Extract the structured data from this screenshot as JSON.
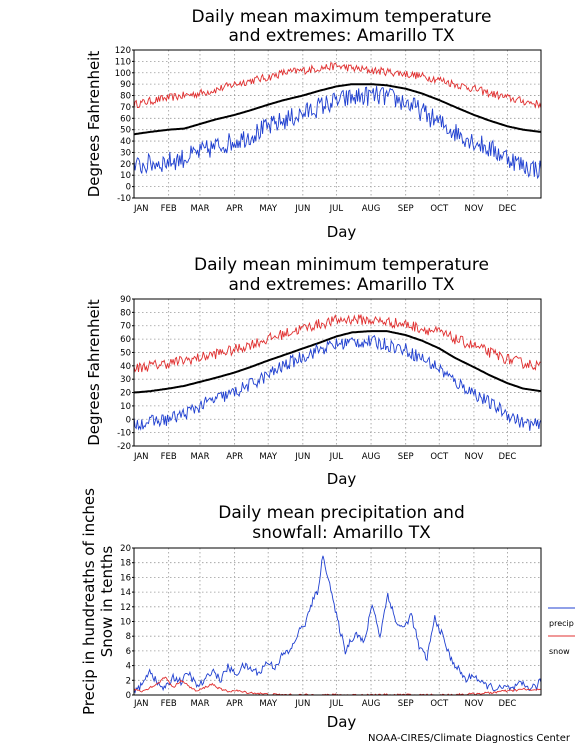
{
  "credit": "NOAA-CIRES/Climate Diagnostics Center",
  "chart_data": [
    {
      "type": "line",
      "title_lines": [
        "Daily mean maximum temperature",
        "and extremes: Amarillo TX"
      ],
      "xlabel": "Day",
      "ylabel": "Degrees Fahrenheit",
      "ylim": [
        -10,
        120
      ],
      "yticks": [
        -10,
        0,
        10,
        20,
        30,
        40,
        50,
        60,
        70,
        80,
        90,
        100,
        110,
        120
      ],
      "xticks": [
        "JAN",
        "FEB",
        "MAR",
        "APR",
        "MAY",
        "JUN",
        "JUL",
        "AUG",
        "SEP",
        "OCT",
        "NOV",
        "DEC"
      ],
      "grid": true,
      "series": [
        {
          "color": "#e03030",
          "x": [
            1,
            15,
            32,
            46,
            60,
            74,
            91,
            105,
            121,
            135,
            152,
            166,
            182,
            196,
            213,
            227,
            244,
            258,
            274,
            288,
            305,
            319,
            335,
            349,
            365
          ],
          "values": [
            72,
            75,
            78,
            80,
            82,
            85,
            90,
            93,
            96,
            100,
            102,
            104,
            106,
            104,
            102,
            101,
            99,
            97,
            94,
            90,
            86,
            82,
            78,
            75,
            72
          ],
          "noise": 3.5
        },
        {
          "color": "#000000",
          "x": [
            1,
            15,
            32,
            46,
            60,
            74,
            91,
            105,
            121,
            135,
            152,
            166,
            182,
            196,
            213,
            227,
            244,
            258,
            274,
            288,
            305,
            319,
            335,
            349,
            365
          ],
          "values": [
            46,
            48,
            50,
            51,
            55,
            59,
            63,
            67,
            72,
            76,
            80,
            84,
            88,
            90,
            90,
            89,
            86,
            82,
            76,
            70,
            63,
            58,
            53,
            50,
            48
          ],
          "noise": 0
        },
        {
          "color": "#2040d0",
          "x": [
            1,
            15,
            32,
            46,
            60,
            74,
            91,
            105,
            121,
            135,
            152,
            166,
            182,
            196,
            213,
            227,
            244,
            258,
            274,
            288,
            305,
            319,
            335,
            349,
            365
          ],
          "values": [
            17,
            20,
            22,
            25,
            30,
            35,
            40,
            45,
            52,
            58,
            64,
            70,
            75,
            78,
            80,
            79,
            74,
            66,
            56,
            48,
            40,
            33,
            26,
            18,
            15
          ],
          "noise": 9
        }
      ]
    },
    {
      "type": "line",
      "title_lines": [
        "Daily mean minimum temperature",
        "and extremes: Amarillo TX"
      ],
      "xlabel": "Day",
      "ylabel": "Degrees Fahrenheit",
      "ylim": [
        -20,
        90
      ],
      "yticks": [
        -20,
        -10,
        0,
        10,
        20,
        30,
        40,
        50,
        60,
        70,
        80,
        90
      ],
      "xticks": [
        "JAN",
        "FEB",
        "MAR",
        "APR",
        "MAY",
        "JUN",
        "JUL",
        "AUG",
        "SEP",
        "OCT",
        "NOV",
        "DEC"
      ],
      "grid": true,
      "series": [
        {
          "color": "#e03030",
          "x": [
            1,
            15,
            32,
            46,
            60,
            74,
            91,
            105,
            121,
            135,
            152,
            166,
            182,
            196,
            213,
            227,
            244,
            258,
            274,
            288,
            305,
            319,
            335,
            349,
            365
          ],
          "values": [
            38,
            40,
            42,
            44,
            46,
            49,
            52,
            56,
            60,
            64,
            68,
            71,
            74,
            75,
            74,
            73,
            71,
            68,
            65,
            60,
            55,
            50,
            45,
            42,
            40
          ],
          "noise": 4
        },
        {
          "color": "#000000",
          "x": [
            1,
            15,
            32,
            46,
            60,
            74,
            91,
            105,
            121,
            135,
            152,
            166,
            182,
            196,
            213,
            227,
            244,
            258,
            274,
            288,
            305,
            319,
            335,
            349,
            365
          ],
          "values": [
            20,
            21,
            23,
            25,
            28,
            31,
            35,
            39,
            44,
            48,
            53,
            57,
            62,
            65,
            66,
            66,
            63,
            59,
            53,
            46,
            39,
            33,
            27,
            23,
            21
          ],
          "noise": 0
        },
        {
          "color": "#2040d0",
          "x": [
            1,
            15,
            32,
            46,
            60,
            74,
            91,
            105,
            121,
            135,
            152,
            166,
            182,
            196,
            213,
            227,
            244,
            258,
            274,
            288,
            305,
            319,
            335,
            349,
            365
          ],
          "values": [
            -3,
            -2,
            0,
            4,
            10,
            15,
            20,
            26,
            33,
            40,
            47,
            52,
            56,
            58,
            58,
            56,
            52,
            46,
            38,
            28,
            20,
            12,
            4,
            -3,
            -5
          ],
          "noise": 5
        }
      ]
    },
    {
      "type": "line",
      "title_lines": [
        "Daily mean precipitation and",
        "snowfall: Amarillo TX"
      ],
      "xlabel": "Day",
      "ylabel_lines": [
        "Precip in hundreaths of inches",
        "Snow in tenths"
      ],
      "ylim": [
        0,
        20
      ],
      "yticks": [
        0,
        2,
        4,
        6,
        8,
        10,
        12,
        14,
        16,
        18,
        20
      ],
      "xticks": [
        "JAN",
        "FEB",
        "MAR",
        "APR",
        "MAY",
        "JUN",
        "JUL",
        "AUG",
        "SEP",
        "OCT",
        "NOV",
        "DEC"
      ],
      "grid": true,
      "legend_position": "right",
      "series": [
        {
          "name": "precip",
          "color": "#2040d0",
          "x": [
            1,
            8,
            15,
            22,
            29,
            36,
            43,
            50,
            57,
            64,
            71,
            78,
            85,
            92,
            99,
            106,
            113,
            120,
            127,
            134,
            141,
            148,
            155,
            160,
            165,
            170,
            175,
            180,
            185,
            190,
            195,
            200,
            207,
            214,
            221,
            228,
            235,
            242,
            249,
            256,
            263,
            270,
            277,
            284,
            291,
            298,
            305,
            312,
            319,
            326,
            333,
            340,
            347,
            354,
            361,
            365
          ],
          "values": [
            0.8,
            1.2,
            3.5,
            1.5,
            0.8,
            2.5,
            1.8,
            3.0,
            1.2,
            1.8,
            3.5,
            2.0,
            3.8,
            2.8,
            4.0,
            3.5,
            3.0,
            4.5,
            3.8,
            5.5,
            6.0,
            8.5,
            10.0,
            12.5,
            14.0,
            18.8,
            16.0,
            12.0,
            9.0,
            6.0,
            7.5,
            8.5,
            7.0,
            12.5,
            8.0,
            13.8,
            10.0,
            9.0,
            11.0,
            6.5,
            5.0,
            10.5,
            8.0,
            5.0,
            3.5,
            2.0,
            2.8,
            1.5,
            1.2,
            0.8,
            1.0,
            0.8,
            1.5,
            1.0,
            1.2,
            2.0
          ],
          "noise": 0.5
        },
        {
          "name": "snow",
          "color": "#e03030",
          "x": [
            1,
            8,
            15,
            22,
            29,
            36,
            43,
            50,
            57,
            64,
            71,
            78,
            85,
            92,
            99,
            106,
            113,
            120,
            140,
            200,
            280,
            300,
            310,
            320,
            330,
            340,
            350,
            360,
            365
          ],
          "values": [
            0.8,
            0.5,
            1.0,
            1.5,
            2.5,
            1.0,
            2.0,
            1.2,
            0.5,
            1.0,
            1.5,
            0.8,
            0.5,
            0.6,
            0.4,
            0.3,
            0.2,
            0.1,
            0.0,
            0.0,
            0.0,
            0.1,
            0.2,
            0.3,
            0.5,
            0.6,
            0.8,
            0.6,
            0.9
          ],
          "noise": 0.15
        }
      ]
    }
  ]
}
